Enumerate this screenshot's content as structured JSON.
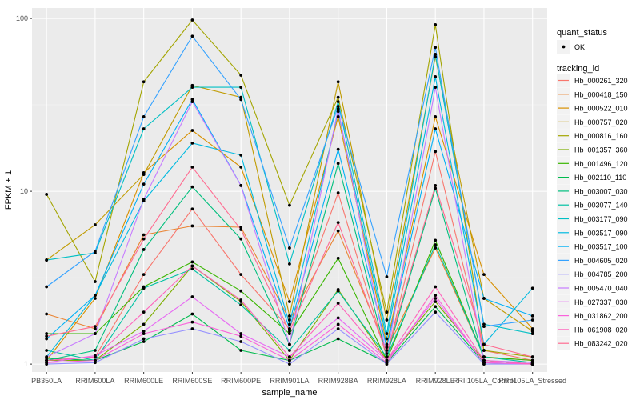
{
  "chart_data": {
    "type": "line",
    "title": "",
    "xlabel": "sample_name",
    "ylabel": "FPKM + 1",
    "yscale": "log10",
    "ylim": [
      0.9,
      115
    ],
    "yticks": [
      1,
      10,
      100
    ],
    "ytick_labels": [
      "1",
      "10",
      "100"
    ],
    "grid": true,
    "legend_position": "right",
    "categories": [
      "PB350LA",
      "RRIM600LA",
      "RRIM600LE",
      "RRIM600SE",
      "RRIM600PE",
      "RRIM901LA",
      "RRIM928BA",
      "RRIM928LA",
      "RRIM928LE",
      "RRII105LA_Control",
      "RRII105LA_Stressed"
    ],
    "point_legend": {
      "title": "quant_status",
      "entries": [
        {
          "label": "OK",
          "symbol": "dot"
        }
      ]
    },
    "color_legend_title": "tracking_id",
    "values_note": "Per-series values are approximate estimates; individual series lines could not be traced unambiguously in the source image.",
    "series": [
      {
        "name": "Hb_000261_320",
        "color": "#F8766D",
        "values": [
          1.05,
          1.1,
          3.3,
          7.9,
          3.3,
          1.6,
          9.8,
          1.1,
          17.0,
          1.2,
          1.05
        ]
      },
      {
        "name": "Hb_000418_150",
        "color": "#EA8331",
        "values": [
          1.95,
          1.6,
          5.6,
          6.3,
          6.2,
          1.8,
          5.9,
          1.2,
          4.7,
          1.1,
          1.05
        ]
      },
      {
        "name": "Hb_000522_010",
        "color": "#D89000",
        "values": [
          1.05,
          2.4,
          12.8,
          22.5,
          13.8,
          2.3,
          27.0,
          1.3,
          27.0,
          3.3,
          1.6
        ]
      },
      {
        "name": "Hb_000757_020",
        "color": "#C09B00",
        "values": [
          4.0,
          6.4,
          12.5,
          41.0,
          35.0,
          1.9,
          43.0,
          1.8,
          60.0,
          2.4,
          1.55
        ]
      },
      {
        "name": "Hb_000816_160",
        "color": "#A3A500",
        "values": [
          9.6,
          3.0,
          43.0,
          98.0,
          47.0,
          8.3,
          35.0,
          2.0,
          92.0,
          1.2,
          1.1
        ]
      },
      {
        "name": "Hb_001357_360",
        "color": "#7CAE00",
        "values": [
          1.05,
          1.05,
          1.7,
          3.7,
          2.3,
          1.05,
          2.7,
          1.05,
          2.3,
          1.05,
          1.0
        ]
      },
      {
        "name": "Hb_001496_120",
        "color": "#39B600",
        "values": [
          1.5,
          1.5,
          2.8,
          3.9,
          2.65,
          1.5,
          4.1,
          1.05,
          5.2,
          1.1,
          1.05
        ]
      },
      {
        "name": "Hb_002110_110",
        "color": "#00BB4E",
        "values": [
          1.08,
          1.05,
          1.35,
          1.95,
          1.2,
          1.05,
          1.4,
          1.02,
          2.15,
          1.02,
          1.0
        ]
      },
      {
        "name": "Hb_003007_030",
        "color": "#00BF7D",
        "values": [
          1.05,
          1.2,
          4.6,
          10.6,
          5.3,
          1.3,
          14.5,
          1.1,
          10.4,
          1.05,
          1.0
        ]
      },
      {
        "name": "Hb_003077_140",
        "color": "#00C1A3",
        "values": [
          1.2,
          1.05,
          2.75,
          3.55,
          2.2,
          1.2,
          2.65,
          1.1,
          4.9,
          1.1,
          1.02
        ]
      },
      {
        "name": "Hb_003177_090",
        "color": "#00BFC4",
        "values": [
          4.0,
          4.4,
          23.0,
          40.0,
          40.0,
          3.8,
          33.0,
          1.5,
          62.0,
          1.7,
          1.5
        ]
      },
      {
        "name": "Hb_003517_090",
        "color": "#00BAE0",
        "values": [
          1.1,
          2.5,
          8.8,
          19.0,
          16.2,
          1.7,
          29.0,
          1.4,
          46.0,
          1.3,
          2.75
        ]
      },
      {
        "name": "Hb_003517_100",
        "color": "#00B0F6",
        "values": [
          1.4,
          2.5,
          11.0,
          34.0,
          10.8,
          1.6,
          17.5,
          1.25,
          23.0,
          2.4,
          1.9
        ]
      },
      {
        "name": "Hb_004605_020",
        "color": "#35A2FF",
        "values": [
          2.8,
          4.5,
          27.0,
          79.0,
          34.0,
          4.7,
          31.0,
          3.2,
          68.0,
          1.65,
          1.8
        ]
      },
      {
        "name": "Hb_004785_200",
        "color": "#9590FF",
        "values": [
          1.0,
          1.02,
          1.4,
          1.6,
          1.35,
          1.0,
          1.6,
          1.0,
          2.0,
          1.0,
          1.0
        ]
      },
      {
        "name": "Hb_005470_040",
        "color": "#C77CFF",
        "values": [
          1.1,
          1.5,
          9.0,
          33.0,
          10.8,
          1.3,
          30.0,
          1.1,
          40.0,
          1.05,
          1.02
        ]
      },
      {
        "name": "Hb_027337_030",
        "color": "#E76BF3",
        "values": [
          1.02,
          1.12,
          1.55,
          2.45,
          1.5,
          1.1,
          1.85,
          1.05,
          2.4,
          1.02,
          1.0
        ]
      },
      {
        "name": "Hb_031862_200",
        "color": "#FA62DB",
        "values": [
          1.02,
          1.05,
          1.5,
          1.75,
          1.45,
          1.05,
          1.7,
          1.02,
          2.5,
          1.02,
          1.0
        ]
      },
      {
        "name": "Hb_061908_020",
        "color": "#FF62BC",
        "values": [
          1.05,
          1.1,
          2.0,
          3.7,
          2.35,
          1.1,
          2.25,
          1.05,
          2.8,
          1.05,
          1.0
        ]
      },
      {
        "name": "Hb_083242_020",
        "color": "#FF6C91",
        "values": [
          1.45,
          1.65,
          5.3,
          13.8,
          6.0,
          1.55,
          6.6,
          1.15,
          10.8,
          1.3,
          1.1
        ]
      }
    ]
  }
}
